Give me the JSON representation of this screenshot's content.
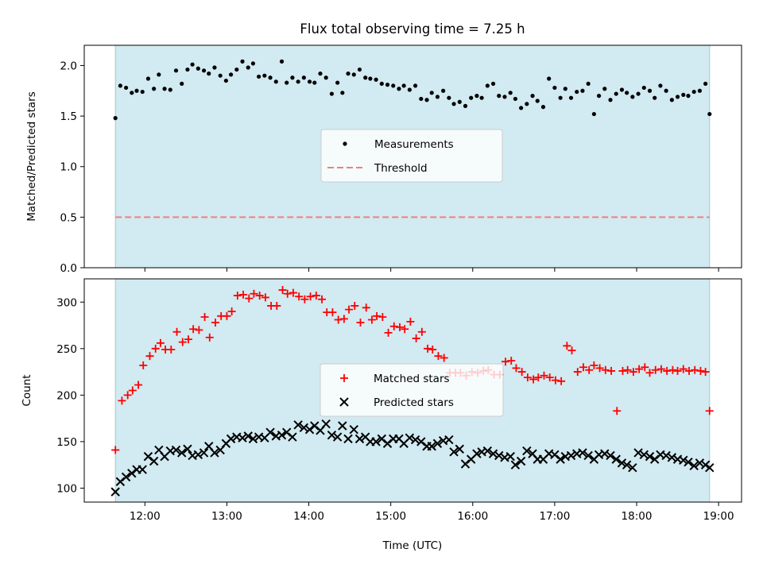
{
  "figure": {
    "title": "Flux total observing time = 7.25 h"
  },
  "chart_data": [
    {
      "type": "scatter",
      "ylabel": "Matched/Predicted stars",
      "xlabel": "",
      "xlim": [
        11.26,
        19.28
      ],
      "ylim": [
        0.0,
        2.2
      ],
      "xticks": [
        12,
        13,
        14,
        15,
        16,
        17,
        18,
        19
      ],
      "xtick_labels": [],
      "yticks": [
        0.0,
        0.5,
        1.0,
        1.5,
        2.0
      ],
      "ytick_labels": [
        "0.0",
        "0.5",
        "1.0",
        "1.5",
        "2.0"
      ],
      "shaded_span": [
        11.64,
        18.89
      ],
      "shade_color": "#add8e6",
      "legend": {
        "placement": "center",
        "entries": [
          "Measurements",
          "Threshold"
        ]
      },
      "series": [
        {
          "name": "Measurements",
          "marker": "dot",
          "color": "#000000",
          "x": [
            11.64,
            11.7,
            11.77,
            11.84,
            11.9,
            11.97,
            12.04,
            12.11,
            12.17,
            12.24,
            12.31,
            12.38,
            12.45,
            12.52,
            12.58,
            12.65,
            12.72,
            12.78,
            12.85,
            12.92,
            12.99,
            13.05,
            13.12,
            13.19,
            13.26,
            13.32,
            13.39,
            13.46,
            13.53,
            13.6,
            13.67,
            13.73,
            13.8,
            13.87,
            13.94,
            14.01,
            14.07,
            14.14,
            14.21,
            14.28,
            14.35,
            14.41,
            14.48,
            14.55,
            14.62,
            14.69,
            14.75,
            14.82,
            14.89,
            14.96,
            15.03,
            15.1,
            15.16,
            15.23,
            15.3,
            15.37,
            15.44,
            15.5,
            15.57,
            15.64,
            15.71,
            15.77,
            15.84,
            15.91,
            15.98,
            16.05,
            16.11,
            16.18,
            16.25,
            16.32,
            16.39,
            16.46,
            16.52,
            16.59,
            16.66,
            16.73,
            16.79,
            16.86,
            16.93,
            17.0,
            17.07,
            17.13,
            17.2,
            17.27,
            17.34,
            17.41,
            17.48,
            17.54,
            17.61,
            17.68,
            17.75,
            17.82,
            17.88,
            17.95,
            18.02,
            18.09,
            18.16,
            18.22,
            18.29,
            18.36,
            18.43,
            18.5,
            18.57,
            18.63,
            18.7,
            18.77,
            18.84,
            18.89
          ],
          "values": [
            1.48,
            1.8,
            1.78,
            1.73,
            1.75,
            1.74,
            1.87,
            1.77,
            1.91,
            1.77,
            1.76,
            1.95,
            1.82,
            1.96,
            2.01,
            1.97,
            1.95,
            1.92,
            1.98,
            1.9,
            1.85,
            1.91,
            1.96,
            2.04,
            1.98,
            2.02,
            1.89,
            1.9,
            1.88,
            1.84,
            2.04,
            1.83,
            1.88,
            1.84,
            1.88,
            1.84,
            1.83,
            1.92,
            1.88,
            1.72,
            1.83,
            1.73,
            1.92,
            1.91,
            1.96,
            1.88,
            1.87,
            1.86,
            1.82,
            1.81,
            1.8,
            1.77,
            1.8,
            1.76,
            1.8,
            1.67,
            1.66,
            1.73,
            1.69,
            1.75,
            1.68,
            1.62,
            1.64,
            1.6,
            1.68,
            1.7,
            1.68,
            1.8,
            1.82,
            1.7,
            1.69,
            1.73,
            1.67,
            1.58,
            1.62,
            1.7,
            1.65,
            1.59,
            1.87,
            1.78,
            1.68,
            1.77,
            1.68,
            1.74,
            1.75,
            1.82,
            1.52,
            1.7,
            1.77,
            1.66,
            1.72,
            1.76,
            1.73,
            1.69,
            1.72,
            1.78,
            1.75,
            1.68,
            1.8,
            1.75,
            1.66,
            1.69,
            1.71,
            1.7,
            1.74,
            1.75,
            1.82,
            1.52
          ]
        },
        {
          "name": "Threshold",
          "marker": "dashed-line",
          "color": "#f08080",
          "x": [
            11.64,
            18.89
          ],
          "values": [
            0.5,
            0.5
          ]
        }
      ]
    },
    {
      "type": "scatter",
      "ylabel": "Count",
      "xlabel": "Time (UTC)",
      "xlim": [
        11.26,
        19.28
      ],
      "ylim": [
        85,
        325
      ],
      "xticks": [
        12,
        13,
        14,
        15,
        16,
        17,
        18,
        19
      ],
      "xtick_labels": [
        "12:00",
        "13:00",
        "14:00",
        "15:00",
        "16:00",
        "17:00",
        "18:00",
        "19:00"
      ],
      "yticks": [
        100,
        150,
        200,
        250,
        300
      ],
      "ytick_labels": [
        "100",
        "150",
        "200",
        "250",
        "300"
      ],
      "shaded_span": [
        11.64,
        18.89
      ],
      "shade_color": "#add8e6",
      "legend": {
        "placement": "center",
        "entries": [
          "Matched stars",
          "Predicted stars"
        ]
      },
      "series": [
        {
          "name": "Matched stars",
          "marker": "plus",
          "color": "#ff0000",
          "x": [
            11.64,
            11.72,
            11.79,
            11.85,
            11.92,
            11.98,
            12.06,
            12.13,
            12.19,
            12.25,
            12.32,
            12.39,
            12.46,
            12.53,
            12.59,
            12.66,
            12.73,
            12.79,
            12.86,
            12.93,
            13.0,
            13.06,
            13.13,
            13.2,
            13.27,
            13.33,
            13.4,
            13.47,
            13.54,
            13.61,
            13.68,
            13.74,
            13.81,
            13.88,
            13.95,
            14.02,
            14.09,
            14.16,
            14.22,
            14.29,
            14.36,
            14.43,
            14.49,
            14.56,
            14.63,
            14.7,
            14.77,
            14.83,
            14.9,
            14.97,
            15.04,
            15.11,
            15.17,
            15.24,
            15.31,
            15.38,
            15.45,
            15.51,
            15.58,
            15.65,
            15.72,
            15.79,
            15.85,
            15.92,
            15.99,
            16.06,
            16.13,
            16.19,
            16.26,
            16.33,
            16.4,
            16.47,
            16.53,
            16.6,
            16.67,
            16.74,
            16.8,
            16.87,
            16.94,
            17.01,
            17.08,
            17.15,
            17.21,
            17.28,
            17.35,
            17.42,
            17.48,
            17.55,
            17.62,
            17.69,
            17.76,
            17.83,
            17.89,
            17.96,
            18.03,
            18.1,
            18.16,
            18.23,
            18.3,
            18.37,
            18.44,
            18.5,
            18.57,
            18.64,
            18.71,
            18.78,
            18.84,
            18.89
          ],
          "values": [
            141,
            194,
            200,
            205,
            211,
            232,
            242,
            250,
            256,
            249,
            249,
            268,
            257,
            260,
            271,
            270,
            284,
            262,
            278,
            285,
            285,
            290,
            307,
            308,
            304,
            309,
            307,
            305,
            296,
            296,
            313,
            309,
            310,
            306,
            303,
            306,
            307,
            303,
            289,
            289,
            281,
            282,
            292,
            296,
            278,
            294,
            281,
            285,
            284,
            267,
            274,
            273,
            271,
            279,
            261,
            268,
            250,
            249,
            242,
            240,
            224,
            224,
            224,
            221,
            225,
            224,
            226,
            227,
            222,
            222,
            236,
            237,
            229,
            225,
            219,
            217,
            219,
            221,
            219,
            216,
            215,
            253,
            248,
            225,
            230,
            227,
            232,
            229,
            227,
            226,
            183,
            226,
            227,
            225,
            228,
            230,
            224,
            227,
            228,
            226,
            227,
            226,
            228,
            226,
            227,
            226,
            225,
            183
          ]
        },
        {
          "name": "Predicted stars",
          "marker": "x",
          "color": "#000000",
          "x": [
            11.64,
            11.7,
            11.77,
            11.84,
            11.9,
            11.97,
            12.04,
            12.11,
            12.17,
            12.24,
            12.31,
            12.38,
            12.45,
            12.52,
            12.58,
            12.65,
            12.72,
            12.78,
            12.85,
            12.92,
            12.99,
            13.05,
            13.12,
            13.19,
            13.26,
            13.32,
            13.39,
            13.46,
            13.53,
            13.6,
            13.67,
            13.73,
            13.8,
            13.87,
            13.94,
            14.01,
            14.07,
            14.14,
            14.21,
            14.28,
            14.35,
            14.41,
            14.48,
            14.55,
            14.62,
            14.69,
            14.75,
            14.82,
            14.89,
            14.96,
            15.03,
            15.1,
            15.16,
            15.23,
            15.3,
            15.37,
            15.44,
            15.5,
            15.57,
            15.64,
            15.71,
            15.77,
            15.84,
            15.91,
            15.98,
            16.05,
            16.11,
            16.18,
            16.25,
            16.32,
            16.39,
            16.46,
            16.52,
            16.59,
            16.66,
            16.73,
            16.79,
            16.86,
            16.93,
            17.0,
            17.07,
            17.13,
            17.2,
            17.27,
            17.34,
            17.41,
            17.48,
            17.54,
            17.61,
            17.68,
            17.75,
            17.82,
            17.88,
            17.95,
            18.02,
            18.09,
            18.16,
            18.22,
            18.29,
            18.36,
            18.43,
            18.5,
            18.57,
            18.63,
            18.7,
            18.77,
            18.84,
            18.89
          ],
          "values": [
            96,
            107,
            112,
            116,
            120,
            120,
            134,
            129,
            141,
            134,
            140,
            141,
            138,
            142,
            135,
            136,
            138,
            145,
            138,
            141,
            148,
            153,
            155,
            154,
            156,
            153,
            155,
            154,
            160,
            156,
            157,
            160,
            155,
            168,
            165,
            163,
            167,
            162,
            169,
            157,
            155,
            167,
            153,
            163,
            153,
            155,
            150,
            150,
            153,
            148,
            153,
            153,
            148,
            154,
            152,
            150,
            145,
            145,
            148,
            151,
            152,
            139,
            142,
            126,
            131,
            137,
            139,
            140,
            137,
            135,
            133,
            134,
            125,
            129,
            140,
            137,
            131,
            131,
            137,
            136,
            131,
            134,
            135,
            137,
            138,
            135,
            131,
            136,
            137,
            135,
            131,
            127,
            125,
            122,
            138,
            136,
            134,
            131,
            136,
            135,
            133,
            131,
            130,
            128,
            124,
            127,
            125,
            122
          ]
        }
      ]
    }
  ]
}
